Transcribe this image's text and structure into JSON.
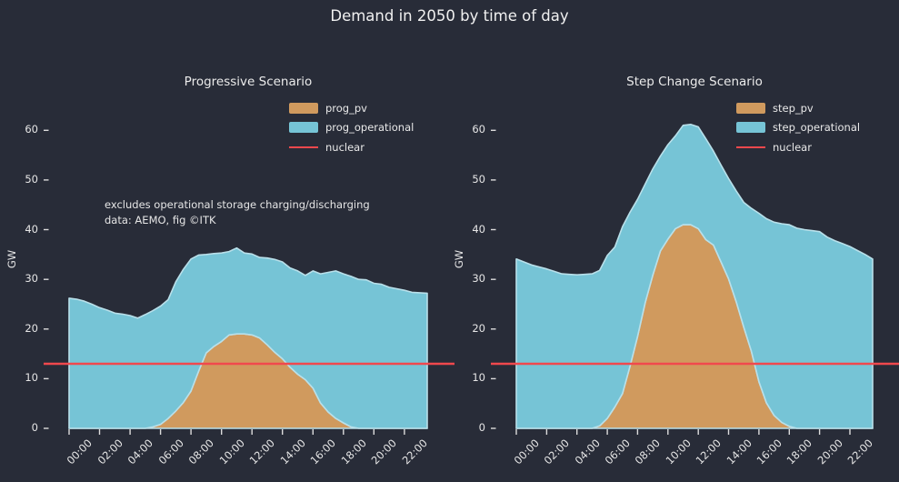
{
  "title": "Demand in 2050 by time of day",
  "colors": {
    "background": "#282c38",
    "text": "#e9e9e9",
    "pv_fill": "#d09a5e",
    "operational_fill": "#76c4d6",
    "area_edge": "#b9e0ea",
    "nuclear_line": "#f0484d",
    "tick": "#dcdcdc"
  },
  "chart_data": {
    "type": "area",
    "stacked": true,
    "grid": false,
    "ylabel": "GW",
    "ylim": [
      0,
      65
    ],
    "yticks": [
      "0",
      "10",
      "20",
      "30",
      "40",
      "50",
      "60"
    ],
    "xtick_labels": [
      "00:00",
      "02:00",
      "04:00",
      "06:00",
      "08:00",
      "10:00",
      "12:00",
      "14:00",
      "16:00",
      "18:00",
      "20:00",
      "22:00"
    ],
    "x": [
      "00:00",
      "00:30",
      "01:00",
      "01:30",
      "02:00",
      "02:30",
      "03:00",
      "03:30",
      "04:00",
      "04:30",
      "05:00",
      "05:30",
      "06:00",
      "06:30",
      "07:00",
      "07:30",
      "08:00",
      "08:30",
      "09:00",
      "09:30",
      "10:00",
      "10:30",
      "11:00",
      "11:30",
      "12:00",
      "12:30",
      "13:00",
      "13:30",
      "14:00",
      "14:30",
      "15:00",
      "15:30",
      "16:00",
      "16:30",
      "17:00",
      "17:30",
      "18:00",
      "18:30",
      "19:00",
      "19:30",
      "20:00",
      "20:30",
      "21:00",
      "21:30",
      "22:00",
      "22:30",
      "23:00",
      "23:30"
    ],
    "legend_position": "upper right",
    "charts": [
      {
        "title": "Progressive Scenario",
        "annotation": [
          "excludes operational storage charging/discharging",
          "data: AEMO, fig ©ITK"
        ],
        "series": [
          {
            "name": "prog_pv",
            "color": "#d09a5e",
            "values": [
              0,
              0,
              0,
              0,
              0,
              0,
              0,
              0,
              0,
              0,
              0,
              0.3,
              0.8,
              2,
              3.5,
              5.2,
              7.5,
              11.5,
              15.2,
              16.5,
              17.5,
              18.8,
              19,
              19,
              18.8,
              18.2,
              16.8,
              15.3,
              14,
              12.3,
              10.9,
              9.8,
              8.1,
              5.1,
              3.3,
              2,
              1.1,
              0.3,
              0,
              0,
              0,
              0,
              0,
              0,
              0,
              0,
              0,
              0
            ]
          },
          {
            "name": "prog_operational",
            "color": "#76c4d6",
            "values": [
              26.2,
              26,
              25.6,
              25,
              24.3,
              23.8,
              23.2,
              23,
              22.7,
              22.2,
              22.9,
              23.4,
              23.8,
              23.9,
              26,
              26.8,
              26.6,
              23.4,
              19.8,
              18.7,
              17.8,
              16.8,
              17.3,
              16.3,
              16.3,
              16.2,
              17.5,
              18.7,
              19.5,
              20,
              20.8,
              21,
              23.6,
              26,
              28.1,
              29.7,
              30,
              30.3,
              30,
              29.9,
              29.2,
              29,
              28.4,
              28.1,
              27.8,
              27.4,
              27.3,
              27.2
            ]
          }
        ],
        "nuclear": {
          "label": "nuclear",
          "value": 13
        }
      },
      {
        "title": "Step Change Scenario",
        "annotation": [],
        "series": [
          {
            "name": "step_pv",
            "color": "#d09a5e",
            "values": [
              0,
              0,
              0,
              0,
              0,
              0,
              0,
              0,
              0,
              0,
              0,
              0.5,
              2,
              4.3,
              7,
              12.5,
              18.5,
              25.3,
              30.8,
              35.7,
              38.1,
              40.2,
              41,
              41,
              40.2,
              38,
              36.9,
              33.5,
              30.1,
              25.5,
              20.4,
              15.5,
              9.4,
              5.1,
              2.6,
              1.2,
              0.4,
              0,
              0,
              0,
              0,
              0,
              0,
              0,
              0,
              0,
              0,
              0
            ]
          },
          {
            "name": "step_operational",
            "color": "#76c4d6",
            "values": [
              34.1,
              33.5,
              32.9,
              32.5,
              32.1,
              31.6,
              31.1,
              31,
              30.9,
              31,
              31.1,
              31.3,
              32.8,
              32.2,
              33.6,
              31,
              27.6,
              23.9,
              21.4,
              19.1,
              19,
              18.7,
              20,
              20.2,
              20.5,
              20.3,
              18.9,
              19.5,
              20.2,
              22.3,
              25.1,
              28.8,
              33.9,
              37.1,
              38.9,
              40,
              40.6,
              40.3,
              40,
              39.8,
              39.6,
              38.5,
              37.8,
              37.2,
              36.6,
              35.8,
              35,
              34.1
            ]
          }
        ],
        "nuclear": {
          "label": "nuclear",
          "value": 13
        }
      }
    ]
  }
}
